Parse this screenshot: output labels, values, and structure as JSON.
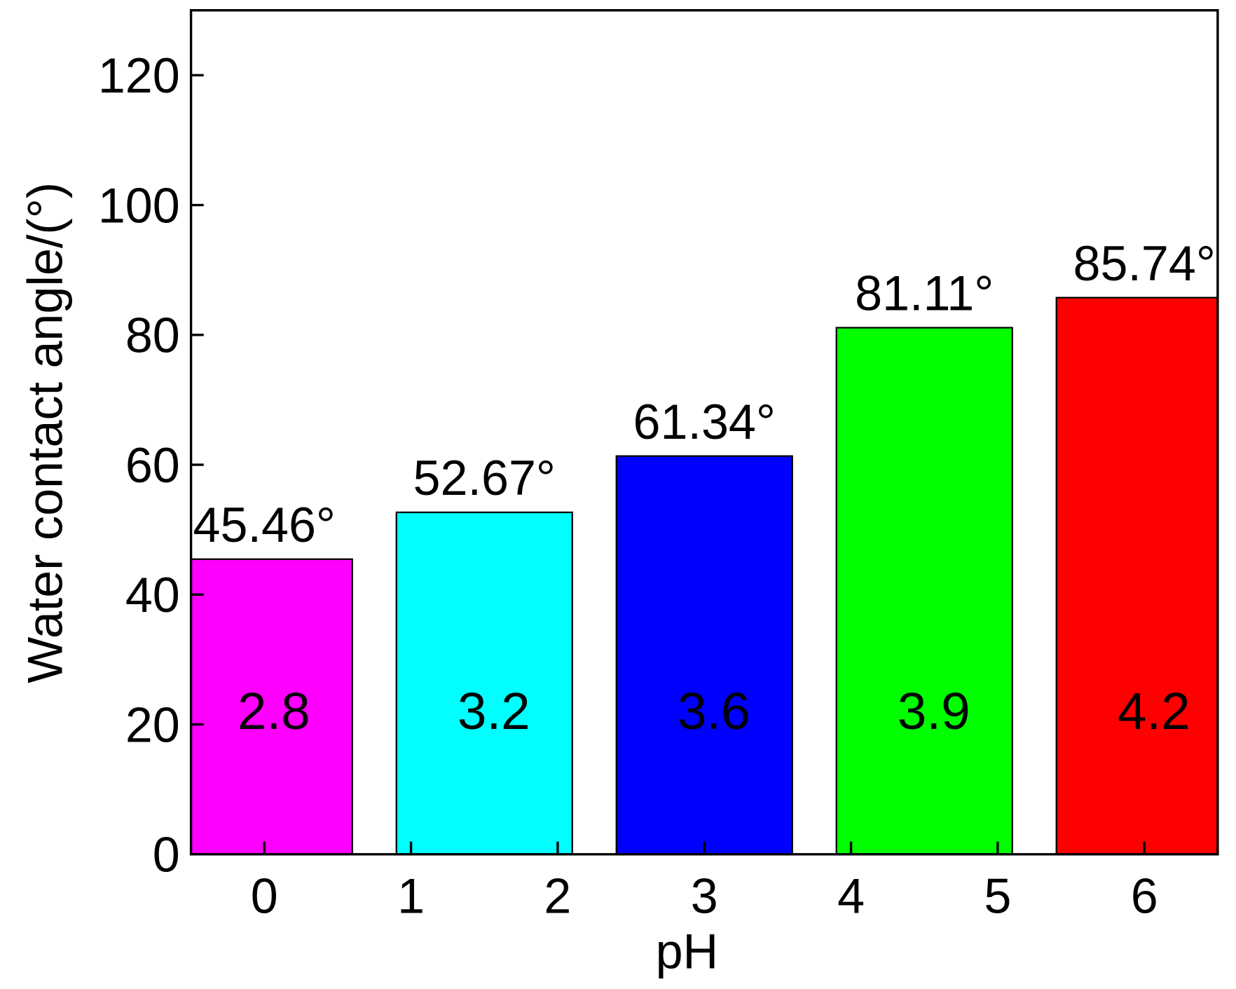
{
  "chart_data": {
    "type": "bar",
    "x_label": "pH",
    "y_label": "Water contact angle/(°)",
    "x": [
      0,
      1.5,
      3,
      4.5,
      6
    ],
    "values": [
      45.46,
      52.67,
      61.34,
      81.11,
      85.74
    ],
    "value_labels": [
      "45.46°",
      "52.67°",
      "61.34°",
      "81.11°",
      "85.74°"
    ],
    "bar_labels": [
      "2.8",
      "3.2",
      "3.6",
      "3.9",
      "4.2"
    ],
    "colors": [
      "#ff00ff",
      "#00ffff",
      "#0000ff",
      "#00ff00",
      "#ff0000"
    ],
    "xlim": [
      -0.5,
      6.5
    ],
    "xticks": [
      0,
      1,
      2,
      3,
      4,
      5,
      6
    ],
    "ylim": [
      0,
      130
    ],
    "yticks": [
      0,
      20,
      40,
      60,
      80,
      100,
      120
    ],
    "grid": false
  }
}
